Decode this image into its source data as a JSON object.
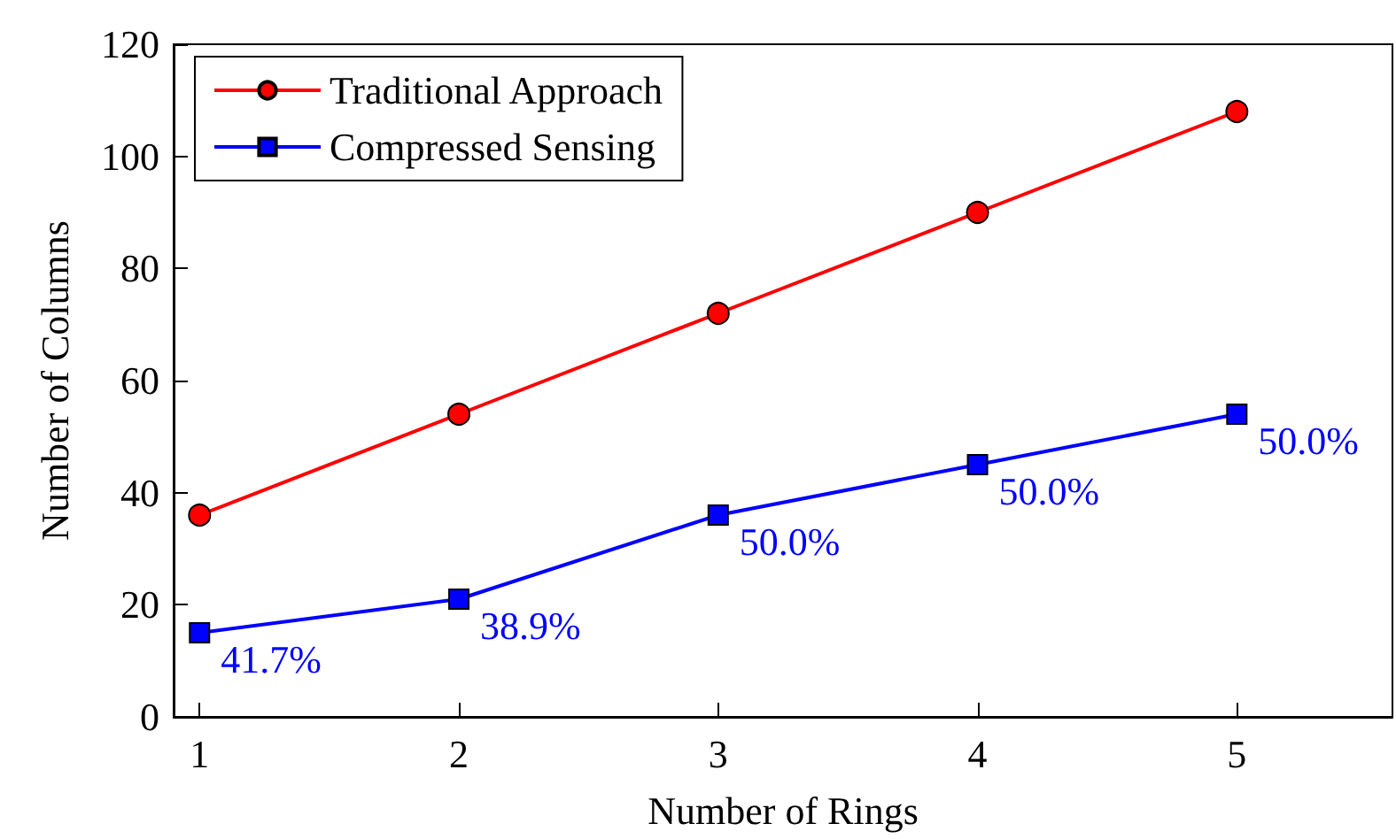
{
  "chart_data": {
    "type": "line",
    "xlabel": "Number of Rings",
    "ylabel": "Number of Columns",
    "x": [
      1,
      2,
      3,
      4,
      5
    ],
    "xlim": [
      0.9,
      5.6
    ],
    "xticks": [
      1,
      2,
      3,
      4,
      5
    ],
    "ylim": [
      0,
      120
    ],
    "yticks": [
      0,
      20,
      40,
      60,
      80,
      100,
      120
    ],
    "grid": false,
    "legend": "top left",
    "series": [
      {
        "name": "Traditional Approach",
        "color": "#ff0000",
        "marker": "circle",
        "values": [
          36,
          54,
          72,
          90,
          108
        ]
      },
      {
        "name": "Compressed Sensing",
        "color": "#0000ff",
        "marker": "square",
        "values": [
          15,
          21,
          36,
          45,
          54
        ]
      }
    ],
    "annotations": [
      {
        "text": "41.7%",
        "x": 1,
        "y": 15
      },
      {
        "text": "38.9%",
        "x": 2,
        "y": 21
      },
      {
        "text": "50.0%",
        "x": 3,
        "y": 36
      },
      {
        "text": "50.0%",
        "x": 4,
        "y": 45
      },
      {
        "text": "50.0%",
        "x": 5,
        "y": 54
      }
    ]
  }
}
